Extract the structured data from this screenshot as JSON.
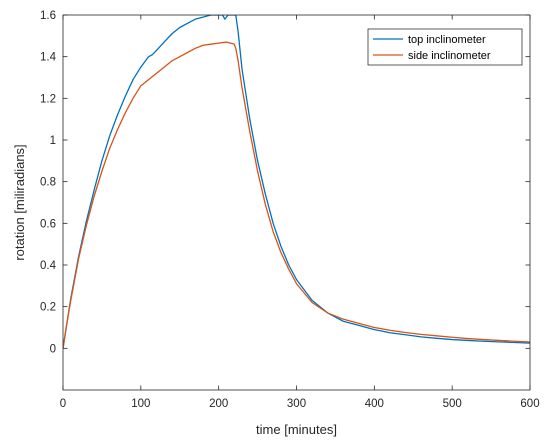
{
  "chart_data": {
    "type": "line",
    "title": "",
    "xlabel": "time [minutes]",
    "ylabel": "rotation [miliradians]",
    "xlim": [
      0,
      600
    ],
    "ylim": [
      -0.2,
      1.6
    ],
    "xticks": [
      0,
      100,
      200,
      300,
      400,
      500,
      600
    ],
    "yticks": [
      0,
      0.2,
      0.4,
      0.6,
      0.8,
      1,
      1.2,
      1.4,
      1.6
    ],
    "xtick_labels": [
      "0",
      "100",
      "200",
      "300",
      "400",
      "500",
      "600"
    ],
    "ytick_labels": [
      "0",
      "0.2",
      "0.4",
      "0.6",
      "0.8",
      "1",
      "1.2",
      "1.4",
      "1.6"
    ],
    "grid": false,
    "box": true,
    "legend": {
      "placement": "top-right"
    },
    "series": [
      {
        "name": "top inclinometer",
        "color": "#0072BD",
        "x": [
          0,
          5,
          10,
          20,
          30,
          40,
          50,
          60,
          70,
          80,
          90,
          100,
          110,
          115,
          120,
          130,
          140,
          150,
          160,
          170,
          180,
          190,
          200,
          205,
          208,
          212,
          215,
          220,
          222,
          225,
          230,
          240,
          250,
          260,
          270,
          280,
          290,
          300,
          320,
          340,
          360,
          380,
          400,
          420,
          440,
          460,
          480,
          500,
          520,
          540,
          560,
          580,
          600
        ],
        "y": [
          0,
          0.12,
          0.24,
          0.44,
          0.61,
          0.76,
          0.9,
          1.02,
          1.12,
          1.21,
          1.29,
          1.35,
          1.4,
          1.41,
          1.43,
          1.47,
          1.51,
          1.54,
          1.56,
          1.58,
          1.59,
          1.6,
          1.6,
          1.6,
          1.58,
          1.6,
          1.6,
          1.6,
          1.6,
          1.52,
          1.34,
          1.1,
          0.9,
          0.74,
          0.6,
          0.49,
          0.4,
          0.33,
          0.23,
          0.17,
          0.13,
          0.11,
          0.09,
          0.075,
          0.065,
          0.055,
          0.048,
          0.042,
          0.038,
          0.034,
          0.031,
          0.028,
          0.025
        ]
      },
      {
        "name": "side inclinometer",
        "color": "#D95319",
        "x": [
          0,
          5,
          10,
          20,
          30,
          40,
          50,
          60,
          70,
          80,
          90,
          100,
          110,
          120,
          130,
          140,
          150,
          160,
          170,
          180,
          190,
          200,
          210,
          215,
          220,
          222,
          225,
          230,
          240,
          250,
          260,
          270,
          280,
          290,
          300,
          320,
          340,
          360,
          380,
          400,
          420,
          440,
          460,
          480,
          500,
          520,
          540,
          560,
          580,
          600
        ],
        "y": [
          0,
          0.12,
          0.23,
          0.43,
          0.59,
          0.73,
          0.85,
          0.96,
          1.05,
          1.13,
          1.2,
          1.26,
          1.29,
          1.32,
          1.35,
          1.38,
          1.4,
          1.42,
          1.44,
          1.455,
          1.46,
          1.465,
          1.47,
          1.465,
          1.46,
          1.44,
          1.38,
          1.25,
          1.04,
          0.85,
          0.69,
          0.56,
          0.46,
          0.38,
          0.31,
          0.22,
          0.17,
          0.14,
          0.12,
          0.1,
          0.087,
          0.076,
          0.067,
          0.06,
          0.053,
          0.047,
          0.042,
          0.038,
          0.034,
          0.03
        ]
      }
    ]
  }
}
